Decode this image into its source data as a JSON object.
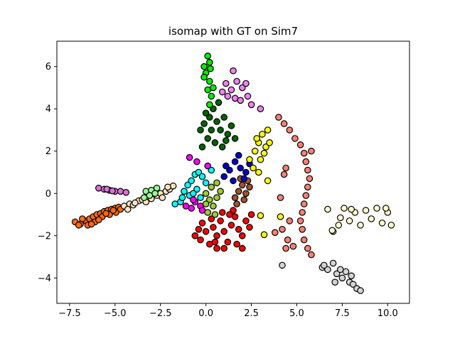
{
  "chart_data": {
    "type": "scatter",
    "title": "isomap with GT on Sim7",
    "xlabel": "",
    "ylabel": "",
    "xlim": [
      -8.2,
      11.2
    ],
    "ylim": [
      -5.2,
      7.2
    ],
    "xticks": [
      -7.5,
      -5.0,
      -2.5,
      0.0,
      2.5,
      5.0,
      7.5,
      10.0
    ],
    "xtick_labels": [
      "−7.5",
      "−5.0",
      "−2.5",
      "0.0",
      "2.5",
      "5.0",
      "7.5",
      "10.0"
    ],
    "yticks": [
      -4,
      -2,
      0,
      2,
      4,
      6
    ],
    "ytick_labels": [
      "−4",
      "−2",
      "0",
      "2",
      "4",
      "6"
    ],
    "grid": false,
    "legend": "none",
    "marker_edge_color": "#000000",
    "series": [
      {
        "color": "#ff6a0d",
        "points": [
          [
            -7.2,
            -1.35
          ],
          [
            -6.9,
            -1.45
          ],
          [
            -6.6,
            -1.3
          ],
          [
            -6.4,
            -1.2
          ],
          [
            -6.2,
            -1.1
          ],
          [
            -6.0,
            -1.0
          ],
          [
            -5.8,
            -0.95
          ],
          [
            -5.6,
            -0.85
          ],
          [
            -5.4,
            -0.8
          ],
          [
            -5.2,
            -0.75
          ],
          [
            -5.0,
            -0.7
          ],
          [
            -4.8,
            -0.65
          ],
          [
            -6.5,
            -1.5
          ],
          [
            -6.1,
            -1.35
          ],
          [
            -5.7,
            -1.1
          ],
          [
            -5.3,
            -1.0
          ],
          [
            -4.95,
            -0.9
          ],
          [
            -6.8,
            -1.2
          ],
          [
            -6.3,
            -1.45
          ],
          [
            -5.9,
            -1.25
          ],
          [
            -5.5,
            -0.95
          ],
          [
            -5.1,
            -0.8
          ],
          [
            -4.7,
            -0.75
          ],
          [
            -7.0,
            -1.5
          ]
        ]
      },
      {
        "color": "#ffe4c4",
        "points": [
          [
            -4.5,
            -0.6
          ],
          [
            -4.2,
            -0.5
          ],
          [
            -4.0,
            -0.55
          ],
          [
            -3.7,
            -0.35
          ],
          [
            -3.5,
            -0.3
          ],
          [
            -3.2,
            -0.2
          ],
          [
            -3.0,
            -0.25
          ],
          [
            -2.7,
            -0.1
          ],
          [
            -2.5,
            0.0
          ],
          [
            -2.2,
            0.1
          ],
          [
            -2.0,
            0.2
          ],
          [
            -1.8,
            0.35
          ],
          [
            -4.3,
            -0.75
          ],
          [
            -3.9,
            -0.45
          ],
          [
            -3.3,
            -0.4
          ],
          [
            -2.9,
            0.05
          ],
          [
            -2.4,
            -0.2
          ],
          [
            -2.1,
            0.3
          ]
        ]
      },
      {
        "color": "#da70d6",
        "points": [
          [
            -5.9,
            0.25
          ],
          [
            -5.6,
            0.2
          ],
          [
            -5.3,
            0.15
          ],
          [
            -5.0,
            0.1
          ],
          [
            -4.7,
            0.1
          ],
          [
            -4.4,
            0.05
          ],
          [
            -5.45,
            0.2
          ],
          [
            -5.15,
            0.12
          ]
        ]
      },
      {
        "color": "#98fb98",
        "points": [
          [
            -3.3,
            0.1
          ],
          [
            -3.0,
            0.15
          ],
          [
            -2.7,
            0.25
          ],
          [
            -3.1,
            -0.1
          ],
          [
            -2.8,
            0.0
          ],
          [
            -3.4,
            -0.2
          ]
        ]
      },
      {
        "color": "#00ffff",
        "points": [
          [
            -1.7,
            -0.5
          ],
          [
            -1.4,
            -0.4
          ],
          [
            -1.2,
            0.1
          ],
          [
            -1.0,
            0.4
          ],
          [
            -0.8,
            0.6
          ],
          [
            -0.6,
            0.9
          ],
          [
            -0.4,
            1.0
          ],
          [
            -0.2,
            0.8
          ],
          [
            0.0,
            0.5
          ],
          [
            -0.9,
            -0.1
          ],
          [
            -0.5,
            0.2
          ],
          [
            -1.3,
            -0.2
          ],
          [
            0.3,
            1.1
          ],
          [
            -0.3,
            -0.2
          ],
          [
            -0.7,
            0.0
          ]
        ]
      },
      {
        "color": "#ff00ff",
        "points": [
          [
            -1.1,
            -0.6
          ],
          [
            -0.8,
            -0.7
          ],
          [
            -0.6,
            -0.4
          ],
          [
            -0.3,
            -0.6
          ],
          [
            -0.9,
            1.7
          ],
          [
            -0.5,
            1.5
          ],
          [
            0.1,
            1.3
          ],
          [
            -0.2,
            -0.8
          ],
          [
            -0.7,
            -0.3
          ]
        ]
      },
      {
        "color": "#9acd32",
        "points": [
          [
            0.0,
            0.0
          ],
          [
            0.2,
            -0.3
          ],
          [
            0.4,
            -0.6
          ],
          [
            0.6,
            -0.2
          ],
          [
            0.1,
            -0.9
          ],
          [
            0.3,
            0.3
          ],
          [
            0.6,
            0.5
          ],
          [
            0.8,
            0.1
          ],
          [
            0.0,
            -0.5
          ],
          [
            0.5,
            -1.0
          ]
        ]
      },
      {
        "color": "#ff0000",
        "points": [
          [
            -0.6,
            -2.0
          ],
          [
            -0.3,
            -2.2
          ],
          [
            0.0,
            -1.8
          ],
          [
            0.2,
            -2.4
          ],
          [
            0.4,
            -1.6
          ],
          [
            0.6,
            -2.0
          ],
          [
            0.8,
            -1.3
          ],
          [
            1.0,
            -1.8
          ],
          [
            1.2,
            -2.3
          ],
          [
            1.4,
            -1.5
          ],
          [
            1.6,
            -1.1
          ],
          [
            1.8,
            -1.7
          ],
          [
            2.0,
            -2.0
          ],
          [
            2.2,
            -1.3
          ],
          [
            2.4,
            -1.6
          ],
          [
            0.6,
            -2.6
          ],
          [
            1.0,
            -2.6
          ],
          [
            2.0,
            -2.6
          ],
          [
            1.5,
            -0.8
          ],
          [
            0.3,
            -1.2
          ],
          [
            -0.2,
            -1.4
          ],
          [
            0.9,
            -0.9
          ],
          [
            1.7,
            -2.4
          ],
          [
            2.5,
            -1.0
          ],
          [
            0.5,
            -2.3
          ],
          [
            1.3,
            -1.0
          ],
          [
            -0.4,
            -1.7
          ]
        ]
      },
      {
        "color": "#a0522d",
        "points": [
          [
            1.6,
            -0.2
          ],
          [
            1.8,
            0.1
          ],
          [
            2.0,
            0.4
          ],
          [
            2.2,
            0.0
          ],
          [
            2.4,
            0.3
          ],
          [
            1.7,
            -0.5
          ],
          [
            2.1,
            -0.3
          ],
          [
            2.3,
            0.6
          ],
          [
            1.9,
            0.7
          ]
        ]
      },
      {
        "color": "#0000cd",
        "points": [
          [
            1.0,
            0.8
          ],
          [
            1.3,
            1.1
          ],
          [
            1.6,
            1.5
          ],
          [
            1.9,
            1.2
          ],
          [
            2.2,
            1.0
          ],
          [
            2.4,
            1.4
          ],
          [
            1.5,
            0.6
          ],
          [
            1.1,
            1.3
          ],
          [
            1.8,
            1.8
          ],
          [
            2.1,
            0.7
          ]
        ]
      },
      {
        "color": "#006400",
        "points": [
          [
            -0.3,
            3.0
          ],
          [
            -0.1,
            3.3
          ],
          [
            0.2,
            3.6
          ],
          [
            0.4,
            4.0
          ],
          [
            0.6,
            3.4
          ],
          [
            0.8,
            3.0
          ],
          [
            1.0,
            3.6
          ],
          [
            1.2,
            2.8
          ],
          [
            0.1,
            2.6
          ],
          [
            0.5,
            2.4
          ],
          [
            0.9,
            2.2
          ],
          [
            1.4,
            3.2
          ],
          [
            -0.2,
            2.2
          ],
          [
            0.7,
            4.3
          ],
          [
            1.6,
            2.6
          ],
          [
            0.3,
            3.0
          ],
          [
            1.1,
            2.5
          ],
          [
            0.0,
            3.8
          ]
        ]
      },
      {
        "color": "#00ee00",
        "points": [
          [
            -0.1,
            6.0
          ],
          [
            0.1,
            6.5
          ],
          [
            0.2,
            6.2
          ],
          [
            0.0,
            5.7
          ],
          [
            0.2,
            5.3
          ],
          [
            0.1,
            4.9
          ],
          [
            0.3,
            4.6
          ],
          [
            0.2,
            4.2
          ],
          [
            0.4,
            5.0
          ],
          [
            -0.1,
            5.5
          ],
          [
            0.25,
            5.9
          ]
        ]
      },
      {
        "color": "#ee82ee",
        "points": [
          [
            0.9,
            4.8
          ],
          [
            1.1,
            5.2
          ],
          [
            1.4,
            4.9
          ],
          [
            1.7,
            5.3
          ],
          [
            2.0,
            5.0
          ],
          [
            2.3,
            4.6
          ],
          [
            2.5,
            4.2
          ],
          [
            1.6,
            4.5
          ],
          [
            1.9,
            4.4
          ],
          [
            1.5,
            5.8
          ],
          [
            2.2,
            5.2
          ],
          [
            1.2,
            4.6
          ],
          [
            3.0,
            4.0
          ]
        ]
      },
      {
        "color": "#ffff00",
        "points": [
          [
            2.4,
            1.6
          ],
          [
            2.7,
            2.0
          ],
          [
            2.9,
            2.4
          ],
          [
            3.1,
            2.8
          ],
          [
            3.3,
            2.2
          ],
          [
            3.0,
            1.6
          ],
          [
            2.6,
            1.2
          ],
          [
            3.4,
            3.0
          ],
          [
            2.8,
            2.6
          ],
          [
            3.2,
            1.9
          ],
          [
            3.5,
            2.4
          ],
          [
            2.9,
            1.0
          ],
          [
            3.4,
            0.6
          ],
          [
            3.0,
            -1.05
          ],
          [
            4.1,
            -1.1
          ],
          [
            3.2,
            -1.95
          ]
        ]
      },
      {
        "color": "#fa8072",
        "points": [
          [
            4.0,
            3.6
          ],
          [
            4.3,
            3.3
          ],
          [
            4.6,
            3.0
          ],
          [
            4.9,
            2.6
          ],
          [
            5.2,
            2.3
          ],
          [
            5.4,
            1.9
          ],
          [
            5.5,
            1.5
          ],
          [
            5.6,
            1.1
          ],
          [
            5.7,
            0.7
          ],
          [
            5.6,
            0.3
          ],
          [
            5.5,
            -0.1
          ],
          [
            5.4,
            -0.5
          ],
          [
            5.3,
            -0.9
          ],
          [
            5.2,
            -1.3
          ],
          [
            5.3,
            -1.7
          ],
          [
            5.4,
            -2.2
          ],
          [
            5.6,
            -2.6
          ],
          [
            5.8,
            -2.9
          ],
          [
            4.5,
            -2.2
          ],
          [
            4.4,
            -2.6
          ],
          [
            4.8,
            -2.5
          ],
          [
            4.2,
            -1.7
          ],
          [
            4.1,
            -0.2
          ],
          [
            4.3,
            0.9
          ],
          [
            4.4,
            1.2
          ],
          [
            5.8,
            2.0
          ],
          [
            4.6,
            -1.3
          ],
          [
            3.8,
            -1.85
          ]
        ]
      },
      {
        "color": "#fffacd",
        "points": [
          [
            6.7,
            -0.75
          ],
          [
            7.0,
            -1.8
          ],
          [
            7.3,
            -1.5
          ],
          [
            7.6,
            -0.7
          ],
          [
            7.9,
            -1.3
          ],
          [
            8.2,
            -0.9
          ],
          [
            8.5,
            -1.5
          ],
          [
            8.8,
            -0.8
          ],
          [
            9.1,
            -1.2
          ],
          [
            9.4,
            -0.7
          ],
          [
            9.7,
            -1.4
          ],
          [
            10.0,
            -0.9
          ],
          [
            10.2,
            -1.5
          ],
          [
            7.4,
            -1.15
          ],
          [
            8.0,
            -0.75
          ],
          [
            9.9,
            -0.7
          ],
          [
            6.95,
            -1.75
          ]
        ]
      },
      {
        "color": "#d3d3d3",
        "points": [
          [
            6.4,
            -3.5
          ],
          [
            6.7,
            -3.6
          ],
          [
            7.0,
            -3.3
          ],
          [
            7.2,
            -3.8
          ],
          [
            7.5,
            -4.0
          ],
          [
            7.7,
            -3.7
          ],
          [
            7.9,
            -4.2
          ],
          [
            8.1,
            -4.3
          ],
          [
            8.3,
            -4.5
          ],
          [
            8.5,
            -4.6
          ],
          [
            7.1,
            -4.2
          ],
          [
            6.5,
            -3.4
          ],
          [
            7.4,
            -3.6
          ],
          [
            8.0,
            -3.9
          ],
          [
            4.2,
            -3.4
          ]
        ]
      }
    ]
  }
}
